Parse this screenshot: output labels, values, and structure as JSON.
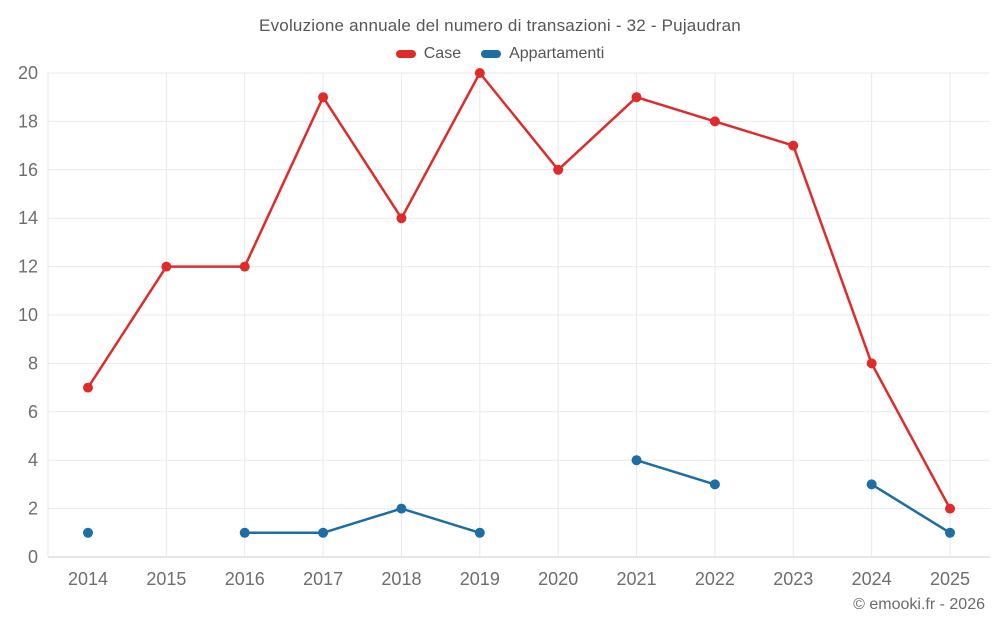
{
  "title": "Evoluzione annuale del numero di transazioni - 32 - Pujaudran",
  "footer": "© emooki.fr - 2026",
  "legend": [
    {
      "label": "Case",
      "color": "#e02b2b"
    },
    {
      "label": "Appartamenti",
      "color": "#1c6ea4"
    }
  ],
  "colors": {
    "series_case": "#e02b2b",
    "series_appartamenti": "#1c6ea4",
    "gridline": "#e9e9e9",
    "axis_line": "#cccccc",
    "tick_text": "#6e6e6e",
    "title_text": "#565656"
  },
  "chart_data": {
    "type": "line",
    "title": "Evoluzione annuale del numero di transazioni - 32 - Pujaudran",
    "x": [
      2014,
      2015,
      2016,
      2017,
      2018,
      2019,
      2020,
      2021,
      2022,
      2023,
      2024,
      2025
    ],
    "series": [
      {
        "name": "Case",
        "color": "#e02b2b",
        "values": [
          7,
          12,
          12,
          19,
          14,
          20,
          16,
          19,
          18,
          17,
          8,
          2
        ]
      },
      {
        "name": "Appartamenti",
        "color": "#1c6ea4",
        "values": [
          1,
          null,
          1,
          1,
          2,
          1,
          null,
          4,
          3,
          null,
          3,
          1
        ]
      }
    ],
    "xlabel": "",
    "ylabel": "",
    "ylim": [
      0,
      20
    ],
    "ytick_step": 2,
    "grid": true,
    "legend_position": "top",
    "marker": "circle",
    "missing_points_appartamenti": [
      2015,
      2020,
      2023
    ]
  }
}
